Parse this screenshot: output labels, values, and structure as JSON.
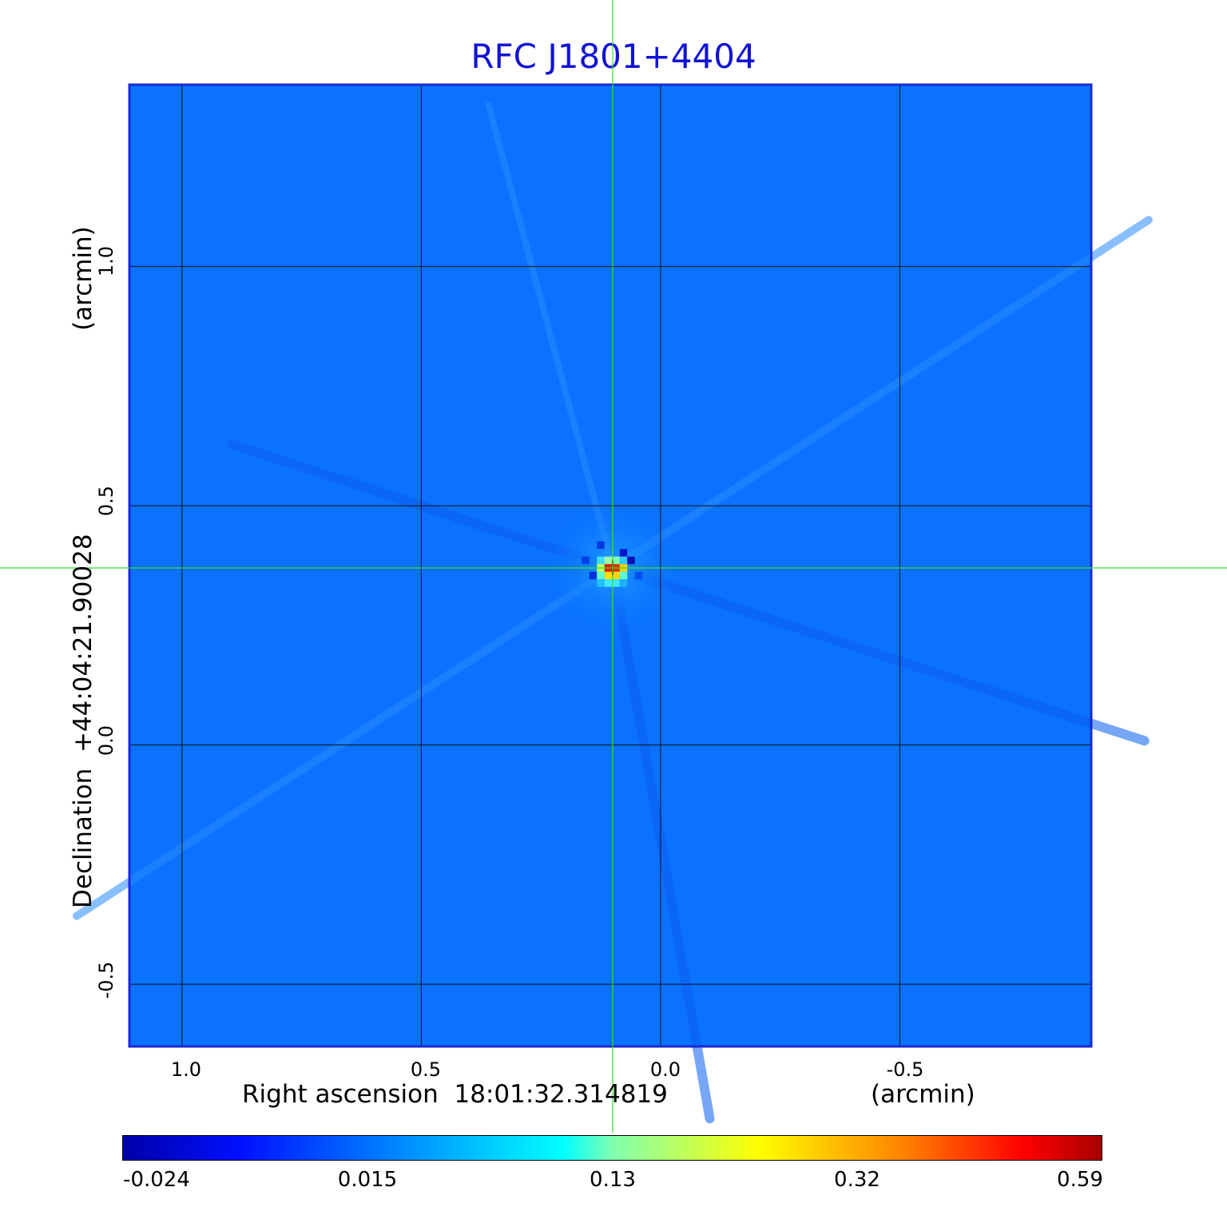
{
  "chart_data": {
    "type": "heatmap",
    "title": "RFC J1801+4404",
    "xlabel": "Right ascension  18:01:32.314819",
    "xunit": "(arcmin)",
    "ylabel": "Declination  +44:04:21.90028",
    "yunit": "(arcmin)",
    "x_ticks": [
      1.0,
      0.5,
      0.0,
      -0.5
    ],
    "x_tick_labels": [
      "1.0",
      "0.5",
      "0.0",
      "-0.5"
    ],
    "xlim": [
      1.11,
      -0.9
    ],
    "y_ticks": [
      1.0,
      0.5,
      0.0,
      -0.5
    ],
    "y_tick_labels": [
      "1.0",
      "0.5",
      "0.0",
      "-0.5"
    ],
    "ylim": [
      -0.63,
      1.38
    ],
    "grid": true,
    "crosshair": {
      "x": 0.1,
      "y": 0.37
    },
    "source_peak": {
      "x": 0.1,
      "y": 0.37,
      "value": 0.59
    },
    "background_value": 0.0,
    "colorbar": {
      "ticks": [
        -0.024,
        0.015,
        0.13,
        0.32,
        0.59
      ],
      "tick_labels": [
        "-0.024",
        "0.015",
        "0.13",
        "0.32",
        "0.59"
      ],
      "colormap": "jet"
    },
    "colors": {
      "title": "#1212d6",
      "frame": "#1a2ad6",
      "crosshair": "#33dd33",
      "background": "#0a72ff"
    }
  }
}
